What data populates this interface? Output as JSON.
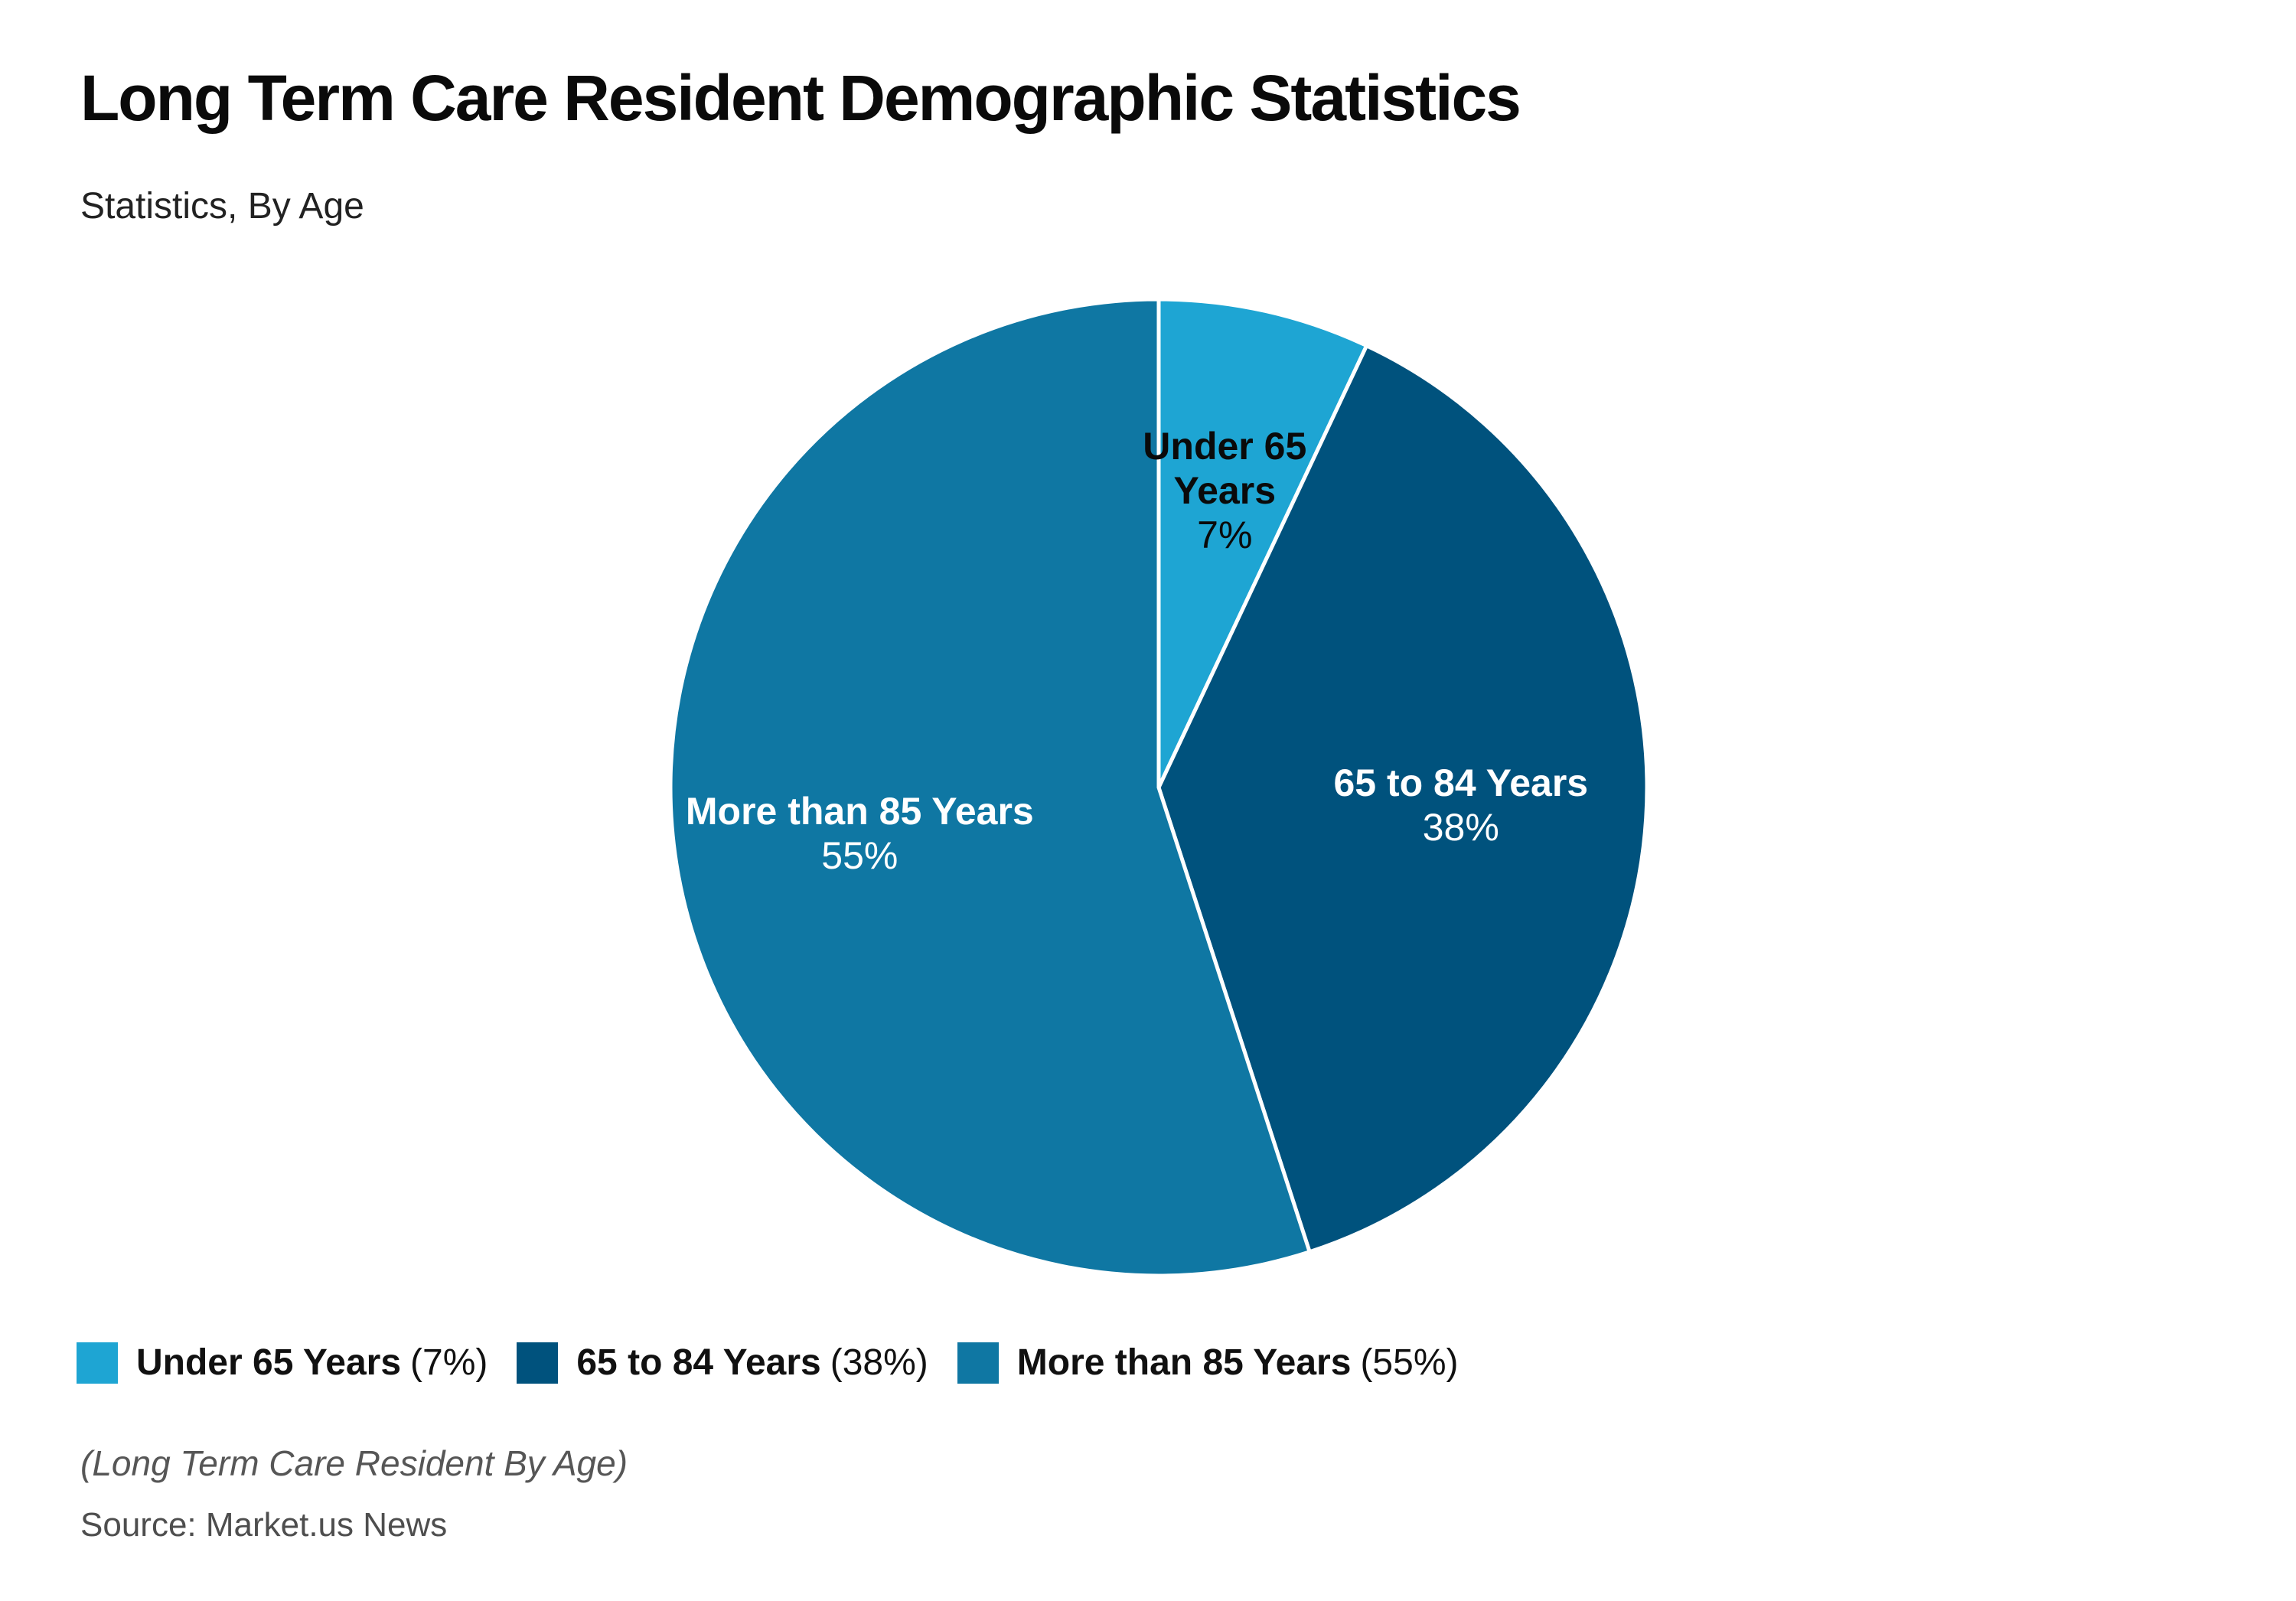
{
  "header": {
    "title": "Long Term Care Resident Demographic Statistics",
    "subtitle": "Statistics, By Age"
  },
  "chart_data": {
    "type": "pie",
    "title": "Long Term Care Resident Demographic Statistics",
    "subtitle": "Statistics, By Age",
    "start_angle_deg": 0,
    "direction": "clockwise",
    "legend_position": "bottom-left",
    "slices": [
      {
        "label": "Under 65 Years",
        "value_pct": 7,
        "color": "#1EA5D3",
        "label_lines": [
          "Under 65",
          "Years"
        ],
        "pct_label": "7%",
        "label_color": "#0a0a0a"
      },
      {
        "label": "65 to 84 Years",
        "value_pct": 38,
        "color": "#00527D",
        "label_lines": [
          "65 to 84 Years"
        ],
        "pct_label": "38%",
        "label_color": "#ffffff"
      },
      {
        "label": "More than 85 Years",
        "value_pct": 55,
        "color": "#0F77A3",
        "label_lines": [
          "More than 85 Years"
        ],
        "pct_label": "55%",
        "label_color": "#ffffff"
      }
    ]
  },
  "legend": {
    "items": [
      {
        "label": "Under 65 Years",
        "pct": "(7%)",
        "color": "#1EA5D3"
      },
      {
        "label": "65 to 84 Years",
        "pct": "(38%)",
        "color": "#00527D"
      },
      {
        "label": "More than 85 Years",
        "pct": "(55%)",
        "color": "#0F77A3"
      }
    ]
  },
  "footer": {
    "note": "(Long Term Care Resident By Age)",
    "source": "Source: Market.us News"
  }
}
